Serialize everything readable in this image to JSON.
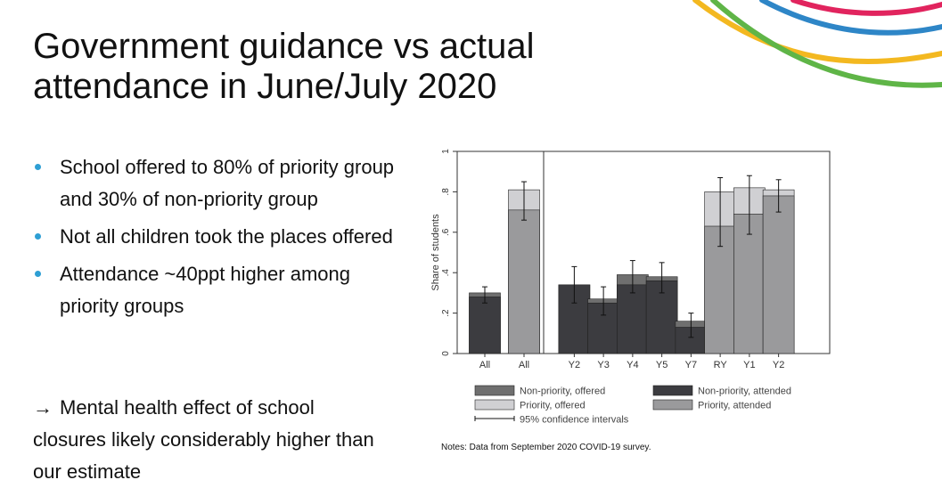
{
  "slide": {
    "title": "Government guidance vs actual attendance in June/July 2020",
    "bullets": [
      "School offered to 80% of priority group and 30% of non-priority group",
      "Not all children took the places offered",
      "Attendance ~40ppt higher among priority groups"
    ],
    "conclusion_arrow": "→",
    "conclusion": "Mental health effect of school closures likely considerably higher than our estimate",
    "notes": "Notes: Data from September 2020 COVID-19 survey."
  },
  "colors": {
    "accent_bullet": "#2e9fd4",
    "non_priority_offered": "#6f6f6f",
    "non_priority_attended": "#3c3c40",
    "priority_offered": "#d0d0d3",
    "priority_attended": "#9a9a9c",
    "deco_arcs": [
      "#f3b820",
      "#5fb547",
      "#2e86c7",
      "#e1245e"
    ]
  },
  "chart_data": {
    "type": "bar",
    "ylabel": "Share of students",
    "ylim": [
      0,
      1
    ],
    "yticks": [
      {
        "value": 0,
        "label": "0"
      },
      {
        "value": 0.2,
        "label": ".2"
      },
      {
        "value": 0.4,
        "label": ".4"
      },
      {
        "value": 0.6,
        "label": ".6"
      },
      {
        "value": 0.8,
        "label": ".8"
      },
      {
        "value": 1,
        "label": "1"
      }
    ],
    "panels": [
      {
        "bars": [
          {
            "label": "All",
            "group": "non-priority",
            "offered": 0.3,
            "attended": 0.28,
            "ci": [
              0.25,
              0.33
            ]
          },
          {
            "label": "All",
            "group": "priority",
            "offered": 0.81,
            "attended": 0.71,
            "ci": [
              0.66,
              0.85
            ]
          }
        ]
      },
      {
        "bars": [
          {
            "label": "Y2",
            "group": "non-priority",
            "offered": 0.34,
            "attended": 0.34,
            "ci": [
              0.25,
              0.43
            ]
          },
          {
            "label": "Y3",
            "group": "non-priority",
            "offered": 0.27,
            "attended": 0.25,
            "ci": [
              0.19,
              0.33
            ]
          },
          {
            "label": "Y4",
            "group": "non-priority",
            "offered": 0.39,
            "attended": 0.34,
            "ci": [
              0.3,
              0.46
            ]
          },
          {
            "label": "Y5",
            "group": "non-priority",
            "offered": 0.38,
            "attended": 0.36,
            "ci": [
              0.3,
              0.45
            ]
          },
          {
            "label": "Y7",
            "group": "non-priority",
            "offered": 0.16,
            "attended": 0.13,
            "ci": [
              0.08,
              0.2
            ]
          },
          {
            "label": "RY",
            "group": "priority",
            "offered": 0.8,
            "attended": 0.63,
            "ci": [
              0.53,
              0.87
            ]
          },
          {
            "label": "Y1",
            "group": "priority",
            "offered": 0.82,
            "attended": 0.69,
            "ci": [
              0.59,
              0.88
            ]
          },
          {
            "label": "Y2",
            "group": "priority",
            "offered": 0.81,
            "attended": 0.78,
            "ci": [
              0.7,
              0.86
            ]
          }
        ]
      }
    ],
    "legend": [
      {
        "key": "non_priority_offered",
        "label": "Non-priority, offered"
      },
      {
        "key": "non_priority_attended",
        "label": "Non-priority, attended"
      },
      {
        "key": "priority_offered",
        "label": "Priority, offered"
      },
      {
        "key": "priority_attended",
        "label": "Priority, attended"
      },
      {
        "key": "ci",
        "label": "95% confidence intervals"
      }
    ]
  }
}
